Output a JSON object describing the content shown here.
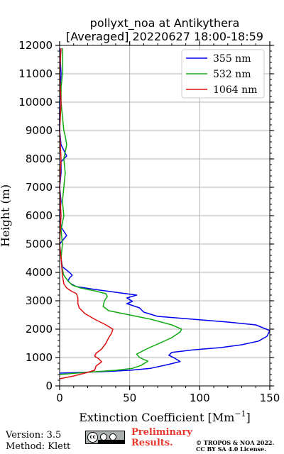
{
  "chart_data": {
    "type": "line",
    "title_line1": "pollyxt_noa at Antikythera",
    "title_line2": "[Averaged] 20220627 18:00-18:59",
    "xlabel": "Extinction Coefficient [Mm",
    "xlabel_exp": "−1",
    "xlabel_end": "]",
    "ylabel": "Height (m)",
    "xlim": [
      0,
      150
    ],
    "ylim": [
      0,
      12000
    ],
    "xticks": [
      0,
      50,
      100,
      150
    ],
    "yticks": [
      0,
      1000,
      2000,
      3000,
      4000,
      5000,
      6000,
      7000,
      8000,
      9000,
      10000,
      11000,
      12000
    ],
    "grid": true,
    "legend_position": "top-right",
    "series": [
      {
        "name": "355 nm",
        "color": "#0000ee",
        "points": [
          [
            0,
            450
          ],
          [
            30,
            500
          ],
          [
            50,
            550
          ],
          [
            65,
            620
          ],
          [
            78,
            760
          ],
          [
            86,
            860
          ],
          [
            82,
            980
          ],
          [
            78,
            1080
          ],
          [
            80,
            1180
          ],
          [
            95,
            1270
          ],
          [
            115,
            1350
          ],
          [
            130,
            1450
          ],
          [
            142,
            1580
          ],
          [
            148,
            1750
          ],
          [
            150,
            1950
          ],
          [
            140,
            2150
          ],
          [
            120,
            2250
          ],
          [
            95,
            2350
          ],
          [
            70,
            2450
          ],
          [
            60,
            2600
          ],
          [
            57,
            2750
          ],
          [
            48,
            2900
          ],
          [
            52,
            2980
          ],
          [
            48,
            3100
          ],
          [
            55,
            3200
          ],
          [
            40,
            3300
          ],
          [
            25,
            3400
          ],
          [
            12,
            3500
          ],
          [
            8,
            3600
          ],
          [
            6,
            3700
          ],
          [
            7,
            3800
          ],
          [
            9,
            3900
          ],
          [
            7,
            4000
          ],
          [
            2,
            4200
          ],
          [
            1,
            4500
          ],
          [
            0,
            5000
          ],
          [
            5,
            5300
          ],
          [
            1,
            5600
          ],
          [
            0,
            6000
          ],
          [
            1,
            6500
          ],
          [
            0,
            7000
          ],
          [
            1,
            7500
          ],
          [
            1,
            7900
          ],
          [
            5,
            8100
          ],
          [
            4,
            8200
          ],
          [
            1,
            8500
          ],
          [
            0,
            9000
          ],
          [
            0,
            10000
          ],
          [
            1,
            11000
          ],
          [
            0,
            11900
          ]
        ]
      },
      {
        "name": "532 nm",
        "color": "#11aa11",
        "points": [
          [
            0,
            400
          ],
          [
            20,
            480
          ],
          [
            40,
            550
          ],
          [
            52,
            620
          ],
          [
            58,
            720
          ],
          [
            63,
            870
          ],
          [
            57,
            1000
          ],
          [
            55,
            1120
          ],
          [
            62,
            1300
          ],
          [
            72,
            1520
          ],
          [
            80,
            1700
          ],
          [
            86,
            1900
          ],
          [
            87,
            2000
          ],
          [
            80,
            2150
          ],
          [
            65,
            2350
          ],
          [
            50,
            2500
          ],
          [
            35,
            2650
          ],
          [
            31,
            2800
          ],
          [
            32,
            3000
          ],
          [
            34,
            3150
          ],
          [
            33,
            3250
          ],
          [
            25,
            3350
          ],
          [
            15,
            3450
          ],
          [
            9,
            3550
          ],
          [
            6,
            3700
          ],
          [
            3,
            3900
          ],
          [
            2,
            4100
          ],
          [
            1,
            4500
          ],
          [
            2,
            5000
          ],
          [
            1,
            5500
          ],
          [
            3,
            6000
          ],
          [
            2,
            6500
          ],
          [
            3,
            7000
          ],
          [
            4,
            7500
          ],
          [
            3,
            8000
          ],
          [
            5,
            8500
          ],
          [
            4,
            8800
          ],
          [
            3,
            9000
          ],
          [
            2,
            9500
          ],
          [
            1,
            10000
          ],
          [
            1,
            10500
          ],
          [
            2,
            11000
          ],
          [
            2,
            11900
          ]
        ]
      },
      {
        "name": "1064 nm",
        "color": "#dd1111",
        "points": [
          [
            0,
            250
          ],
          [
            10,
            350
          ],
          [
            18,
            450
          ],
          [
            25,
            550
          ],
          [
            26,
            700
          ],
          [
            30,
            850
          ],
          [
            28,
            950
          ],
          [
            25,
            1050
          ],
          [
            26,
            1150
          ],
          [
            30,
            1300
          ],
          [
            33,
            1500
          ],
          [
            35,
            1700
          ],
          [
            37,
            1850
          ],
          [
            38,
            2000
          ],
          [
            33,
            2150
          ],
          [
            25,
            2350
          ],
          [
            18,
            2550
          ],
          [
            14,
            2750
          ],
          [
            13,
            2900
          ],
          [
            13,
            3100
          ],
          [
            12,
            3250
          ],
          [
            8,
            3350
          ],
          [
            5,
            3450
          ],
          [
            3,
            3600
          ],
          [
            2,
            3900
          ],
          [
            1,
            4500
          ],
          [
            0,
            5000
          ],
          [
            1,
            6000
          ],
          [
            0,
            7000
          ],
          [
            1,
            8000
          ],
          [
            0,
            9000
          ],
          [
            1,
            10000
          ],
          [
            0,
            11000
          ],
          [
            1,
            11900
          ]
        ]
      }
    ]
  },
  "footer": {
    "version": "Version: 3.5",
    "method": "Method: Klett",
    "preliminary": "Preliminary Results.",
    "copyright": "© TROPOS & NOA 2022. CC BY SA 4.0 License.",
    "cc_badge": "cc-by-sa-badge"
  }
}
